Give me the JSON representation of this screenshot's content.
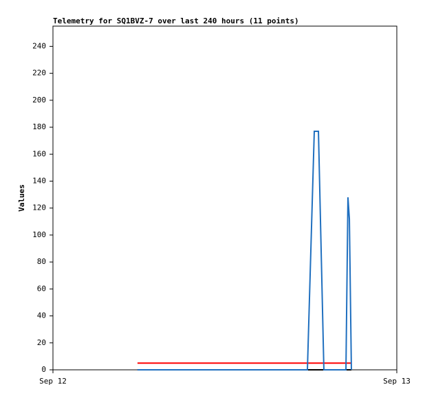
{
  "chart_data": {
    "type": "line",
    "title": "Telemetry for SQ1BVZ-7 over last 240 hours (11 points)",
    "y_label": "Values",
    "xlim": [
      0,
      24
    ],
    "xticks": [
      {
        "value": 0,
        "label": "Sep 12"
      },
      {
        "value": 24,
        "label": "Sep 13"
      }
    ],
    "ylim": [
      0,
      255
    ],
    "yticks": [
      0,
      20,
      40,
      60,
      80,
      100,
      120,
      140,
      160,
      180,
      200,
      220,
      240
    ],
    "series": [
      {
        "color": "#000000",
        "x": [
          5.9,
          20.83
        ],
        "values": [
          0,
          0
        ]
      },
      {
        "color": "#ff0000",
        "x": [
          5.9,
          20.83
        ],
        "values": [
          5,
          5
        ]
      },
      {
        "color": "#1f6fbf",
        "x": [
          5.9,
          17.76,
          18.24,
          18.53,
          18.91,
          20.45,
          20.59,
          20.69,
          20.83
        ],
        "values": [
          0,
          0,
          177,
          177,
          0,
          0,
          128,
          112,
          0
        ]
      }
    ]
  }
}
